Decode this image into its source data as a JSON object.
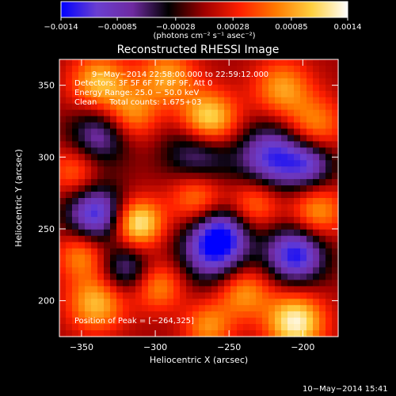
{
  "colorbar": {
    "ticks": [
      {
        "value": -0.0014,
        "label": "−0.0014"
      },
      {
        "value": -0.00085,
        "label": "−0.00085"
      },
      {
        "value": -0.00028,
        "label": "−0.00028"
      },
      {
        "value": 0.00028,
        "label": "0.00028"
      },
      {
        "value": 0.00085,
        "label": "0.00085"
      },
      {
        "value": 0.0014,
        "label": "0.0014"
      }
    ],
    "range": [
      -0.0014,
      0.0014
    ],
    "unit_label": "(photons cm⁻² s⁻¹ asec⁻²)"
  },
  "chart_data": {
    "type": "heatmap",
    "title": "Reconstructed RHESSI Image",
    "xlabel": "Heliocentric X (arcsec)",
    "ylabel": "Heliocentric Y (arcsec)",
    "xlim": [
      -365,
      -176
    ],
    "ylim": [
      175,
      368
    ],
    "x_ticks": [
      {
        "value": -350,
        "label": "−350"
      },
      {
        "value": -300,
        "label": "−300"
      },
      {
        "value": -250,
        "label": "−250"
      },
      {
        "value": -200,
        "label": "−200"
      }
    ],
    "y_ticks": [
      {
        "value": 200,
        "label": "200"
      },
      {
        "value": 250,
        "label": "250"
      },
      {
        "value": 300,
        "label": "300"
      },
      {
        "value": 350,
        "label": "350"
      }
    ],
    "colormap": [
      "#0000ff",
      "#6a3fd0",
      "#6e2aa0",
      "#000000",
      "#a00000",
      "#ff2000",
      "#ff7a00",
      "#ffd040",
      "#ffffff"
    ],
    "peak": {
      "x": -264,
      "y": 325,
      "value": 0.0014
    },
    "blobs": [
      {
        "x": -264,
        "y": 325,
        "v": 1.0,
        "s": 14
      },
      {
        "x": -312,
        "y": 254,
        "v": 0.95,
        "s": 12
      },
      {
        "x": -338,
        "y": 352,
        "v": 0.7,
        "s": 14
      },
      {
        "x": -316,
        "y": 330,
        "v": 0.55,
        "s": 13
      },
      {
        "x": -292,
        "y": 356,
        "v": 0.6,
        "s": 14
      },
      {
        "x": -214,
        "y": 348,
        "v": 0.6,
        "s": 14
      },
      {
        "x": -192,
        "y": 322,
        "v": 0.55,
        "s": 14
      },
      {
        "x": -272,
        "y": 272,
        "v": 0.55,
        "s": 13
      },
      {
        "x": -232,
        "y": 268,
        "v": 0.5,
        "s": 12
      },
      {
        "x": -190,
        "y": 262,
        "v": 0.6,
        "s": 13
      },
      {
        "x": -350,
        "y": 232,
        "v": 0.55,
        "s": 12
      },
      {
        "x": -340,
        "y": 198,
        "v": 0.7,
        "s": 14
      },
      {
        "x": -298,
        "y": 210,
        "v": 0.55,
        "s": 12
      },
      {
        "x": -240,
        "y": 206,
        "v": 0.6,
        "s": 13
      },
      {
        "x": -205,
        "y": 185,
        "v": 0.95,
        "s": 14
      },
      {
        "x": -264,
        "y": 182,
        "v": 0.55,
        "s": 12
      },
      {
        "x": -355,
        "y": 290,
        "v": 0.45,
        "s": 12
      },
      {
        "x": -338,
        "y": 315,
        "v": -0.6,
        "s": 14
      },
      {
        "x": -270,
        "y": 305,
        "v": -0.65,
        "s": 16
      },
      {
        "x": -220,
        "y": 300,
        "v": -0.85,
        "s": 16
      },
      {
        "x": -340,
        "y": 260,
        "v": -0.9,
        "s": 14
      },
      {
        "x": -195,
        "y": 295,
        "v": -0.6,
        "s": 12
      },
      {
        "x": -260,
        "y": 235,
        "v": -0.85,
        "s": 16
      },
      {
        "x": -205,
        "y": 232,
        "v": -0.95,
        "s": 14
      },
      {
        "x": -320,
        "y": 222,
        "v": -0.55,
        "s": 12
      },
      {
        "x": -255,
        "y": 248,
        "v": -0.5,
        "s": 12
      }
    ],
    "annotations": {
      "time_range": "9−May−2014 22:58:00.000 to 22:59:12.000",
      "detectors": "Detectors: 3F 5F 6F 7F 8F 9F, Att 0",
      "energy_range": "Energy Range: 25.0 − 50.0 keV",
      "method_counts": "Clean     Total counts: 1.675+03",
      "peak_position": "Position of Peak = [−264,325]"
    }
  },
  "footer_timestamp": "10−May−2014 15:41"
}
